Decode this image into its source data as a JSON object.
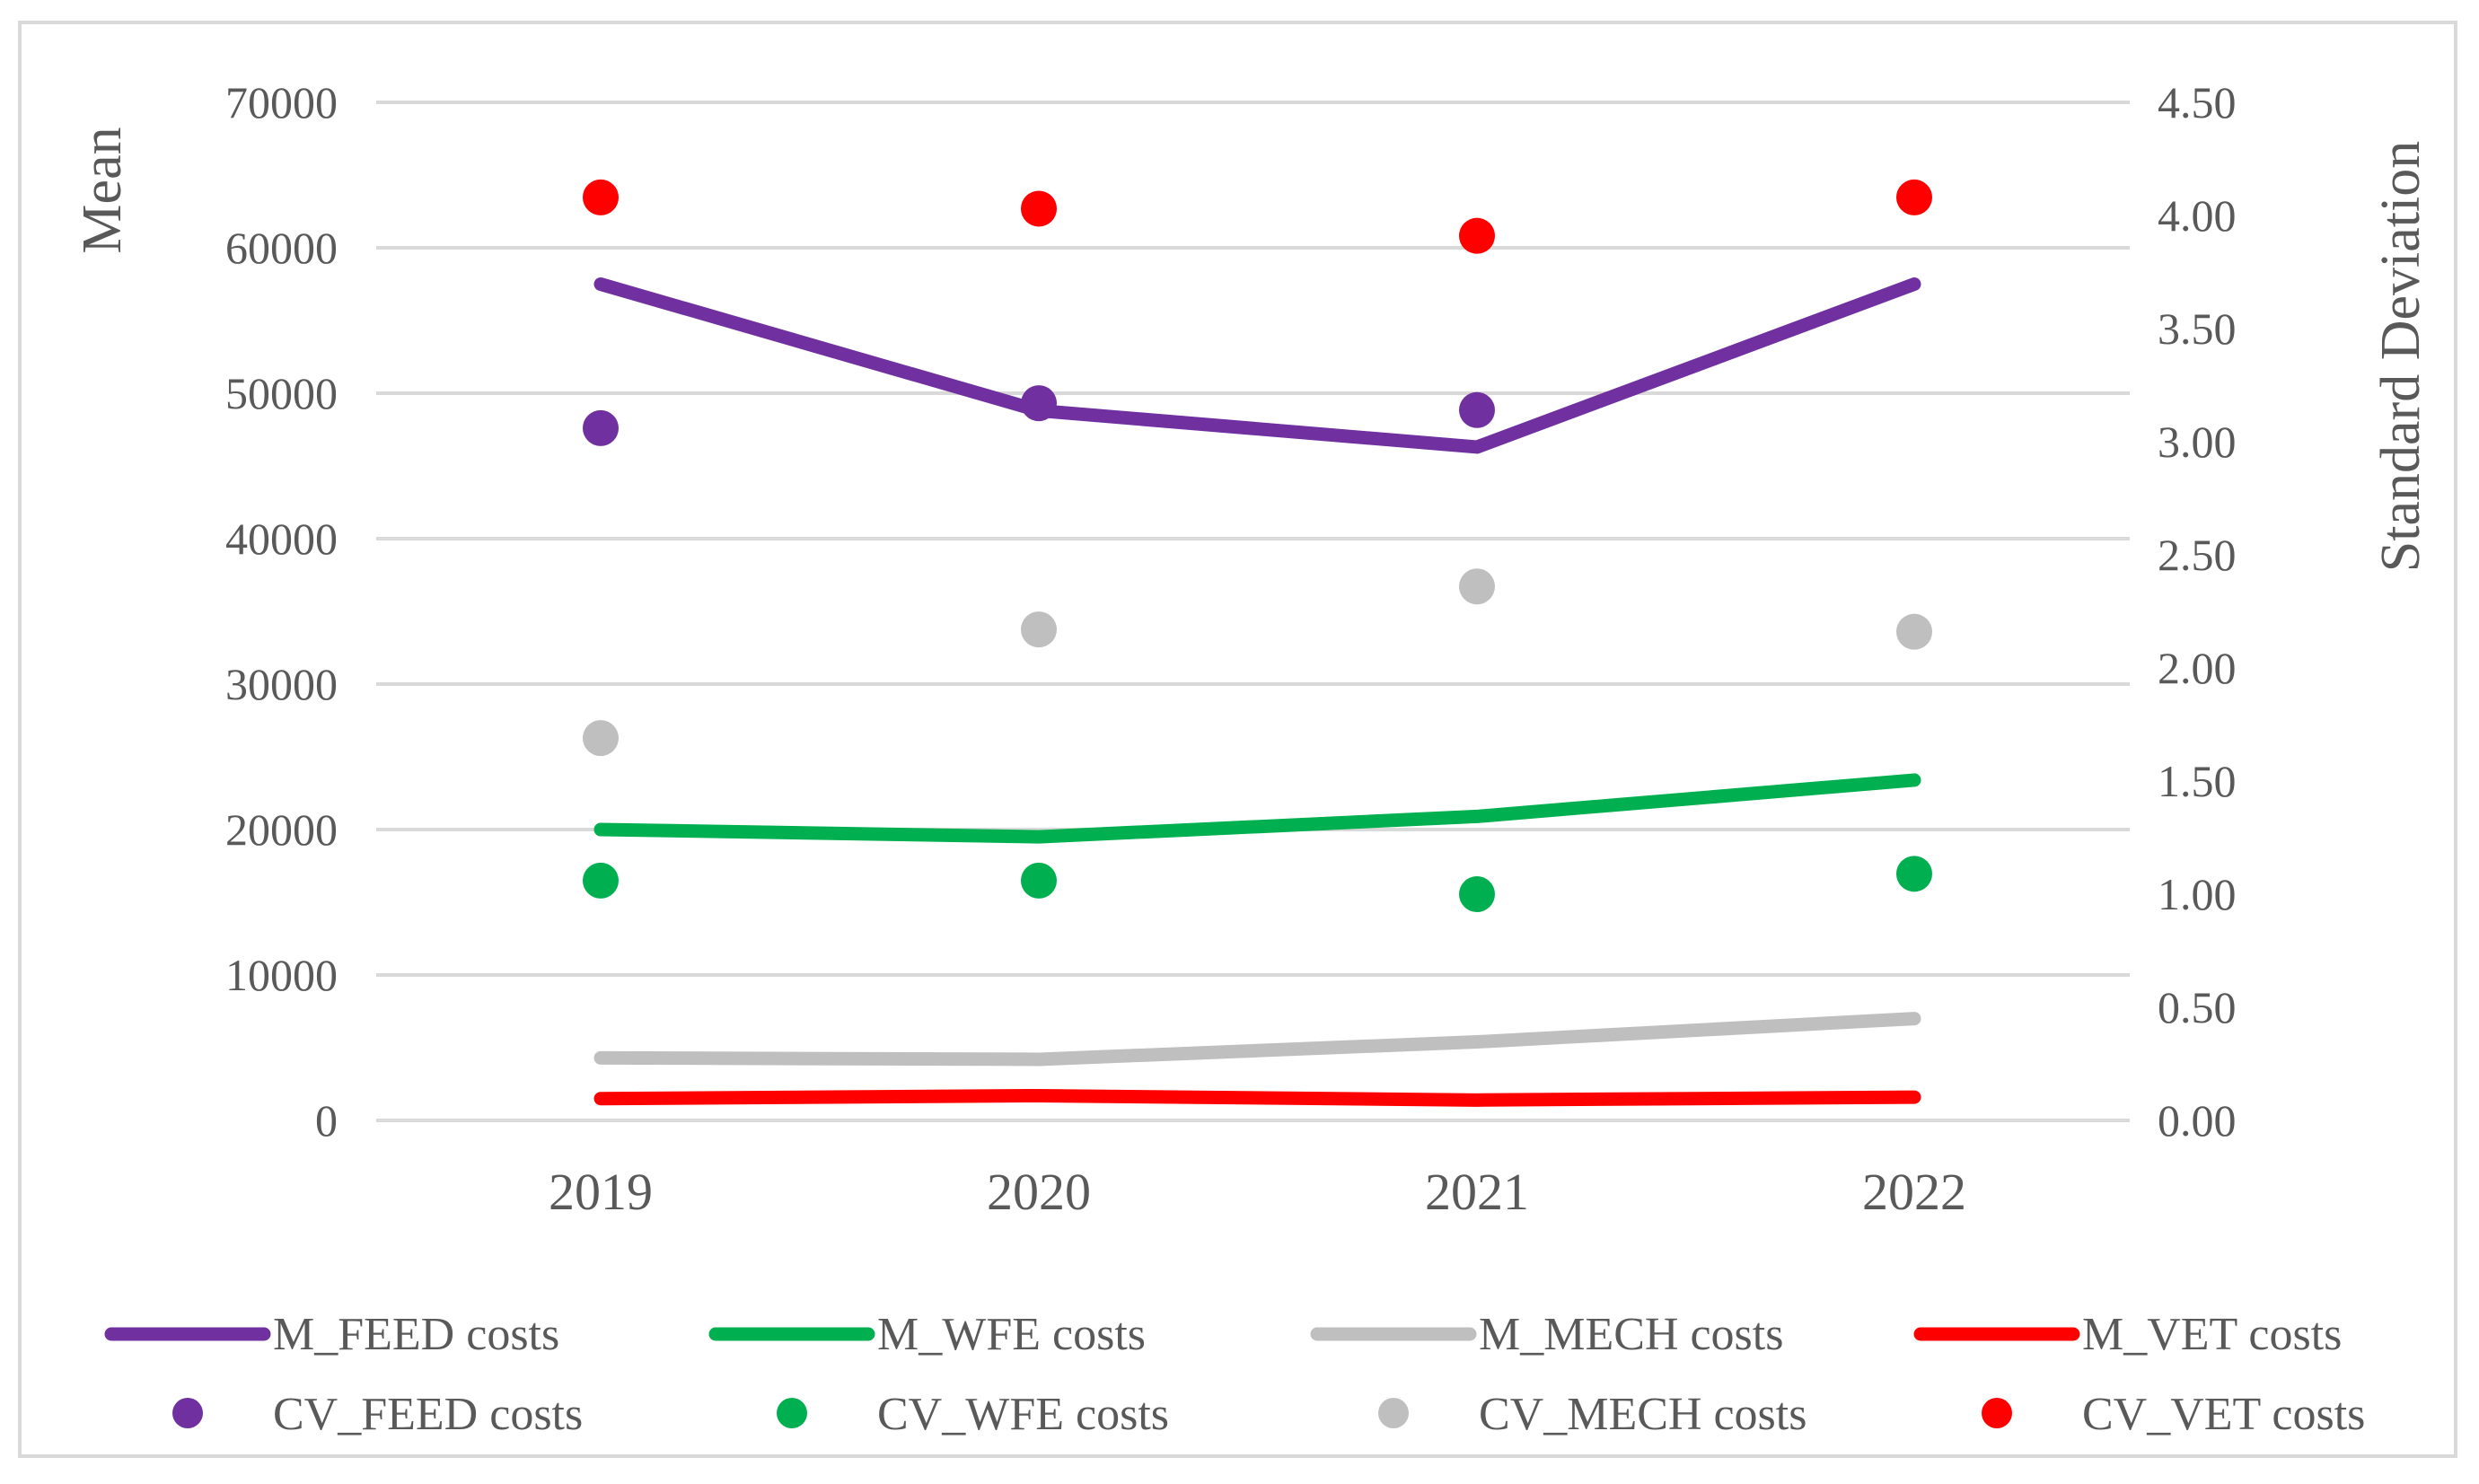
{
  "chart_data": {
    "type": "line",
    "categories": [
      "2019",
      "2020",
      "2021",
      "2022"
    ],
    "y_left": {
      "label": "Mean",
      "range": [
        0,
        70000
      ],
      "ticks": [
        "0",
        "10000",
        "20000",
        "30000",
        "40000",
        "50000",
        "60000",
        "70000"
      ]
    },
    "y_right": {
      "label": "Standard Deviation",
      "range": [
        0,
        4.5
      ],
      "ticks": [
        "0.00",
        "0.50",
        "1.00",
        "1.50",
        "2.00",
        "2.50",
        "3.00",
        "3.50",
        "4.00",
        "4.50"
      ]
    },
    "grid": true,
    "legend_position": "bottom",
    "line_series": [
      {
        "name": "M_FEED costs",
        "axis": "left",
        "color": "#7030a0",
        "values": [
          57500,
          48800,
          46300,
          57500
        ]
      },
      {
        "name": "M_WFE costs",
        "axis": "left",
        "color": "#00b050",
        "values": [
          20000,
          19500,
          20900,
          23400
        ]
      },
      {
        "name": "M_MECH costs",
        "axis": "left",
        "color": "#bfbfbf",
        "values": [
          4300,
          4200,
          5400,
          7000
        ]
      },
      {
        "name": "M_VET costs",
        "axis": "left",
        "color": "#ff0000",
        "values": [
          1500,
          1700,
          1400,
          1600
        ]
      }
    ],
    "scatter_series": [
      {
        "name": "CV_FEED costs",
        "axis": "right",
        "color": "#7030a0",
        "values": [
          3.06,
          3.17,
          3.14,
          null
        ]
      },
      {
        "name": "CV_WFE costs",
        "axis": "right",
        "color": "#00b050",
        "values": [
          1.06,
          1.06,
          1.0,
          1.09
        ]
      },
      {
        "name": "CV_MECH costs",
        "axis": "right",
        "color": "#bfbfbf",
        "values": [
          1.69,
          2.17,
          2.36,
          2.16
        ]
      },
      {
        "name": "CV_VET costs",
        "axis": "right",
        "color": "#ff0000",
        "values": [
          4.08,
          4.03,
          3.91,
          4.08
        ]
      }
    ]
  }
}
